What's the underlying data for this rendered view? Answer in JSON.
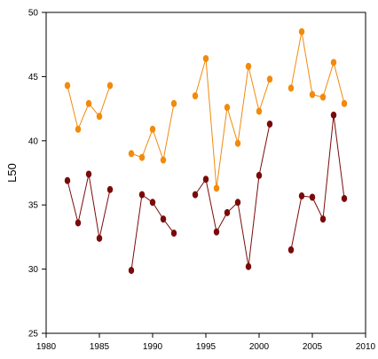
{
  "chart_data": {
    "type": "line",
    "title": "",
    "xlabel": "",
    "ylabel": "L50",
    "xlim": [
      1980,
      2010
    ],
    "ylim": [
      25,
      50
    ],
    "xticks": [
      1980,
      1985,
      1990,
      1995,
      2000,
      2005,
      2010
    ],
    "yticks": [
      25,
      30,
      35,
      40,
      45,
      50
    ],
    "grid": false,
    "series": [
      {
        "color": "#f28a0c",
        "segments": [
          [
            [
              1982,
              44.3
            ],
            [
              1983,
              40.9
            ],
            [
              1984,
              42.9
            ],
            [
              1985,
              41.9
            ],
            [
              1986,
              44.3
            ]
          ],
          [
            [
              1988,
              39.0
            ],
            [
              1989,
              38.7
            ],
            [
              1990,
              40.9
            ],
            [
              1991,
              38.5
            ],
            [
              1992,
              42.9
            ]
          ],
          [
            [
              1994,
              43.5
            ],
            [
              1995,
              46.4
            ],
            [
              1996,
              36.3
            ],
            [
              1997,
              42.6
            ],
            [
              1998,
              39.8
            ],
            [
              1999,
              45.8
            ],
            [
              2000,
              42.3
            ],
            [
              2001,
              44.8
            ]
          ],
          [
            [
              2003,
              44.1
            ],
            [
              2004,
              48.5
            ],
            [
              2005,
              43.6
            ],
            [
              2006,
              43.4
            ],
            [
              2007,
              46.1
            ],
            [
              2008,
              42.9
            ]
          ]
        ]
      },
      {
        "color": "#7a0a0a",
        "segments": [
          [
            [
              1982,
              36.9
            ],
            [
              1983,
              33.6
            ],
            [
              1984,
              37.4
            ],
            [
              1985,
              32.4
            ],
            [
              1986,
              36.2
            ]
          ],
          [
            [
              1988,
              29.9
            ],
            [
              1989,
              35.8
            ],
            [
              1990,
              35.2
            ],
            [
              1991,
              33.9
            ],
            [
              1992,
              32.8
            ]
          ],
          [
            [
              1994,
              35.8
            ],
            [
              1995,
              37.0
            ],
            [
              1996,
              32.9
            ],
            [
              1997,
              34.4
            ],
            [
              1998,
              35.2
            ],
            [
              1999,
              30.2
            ],
            [
              2000,
              37.3
            ],
            [
              2001,
              41.3
            ]
          ],
          [
            [
              2003,
              31.5
            ],
            [
              2004,
              35.7
            ],
            [
              2005,
              35.6
            ],
            [
              2006,
              33.9
            ],
            [
              2007,
              42.0
            ],
            [
              2008,
              35.5
            ]
          ]
        ]
      }
    ]
  }
}
